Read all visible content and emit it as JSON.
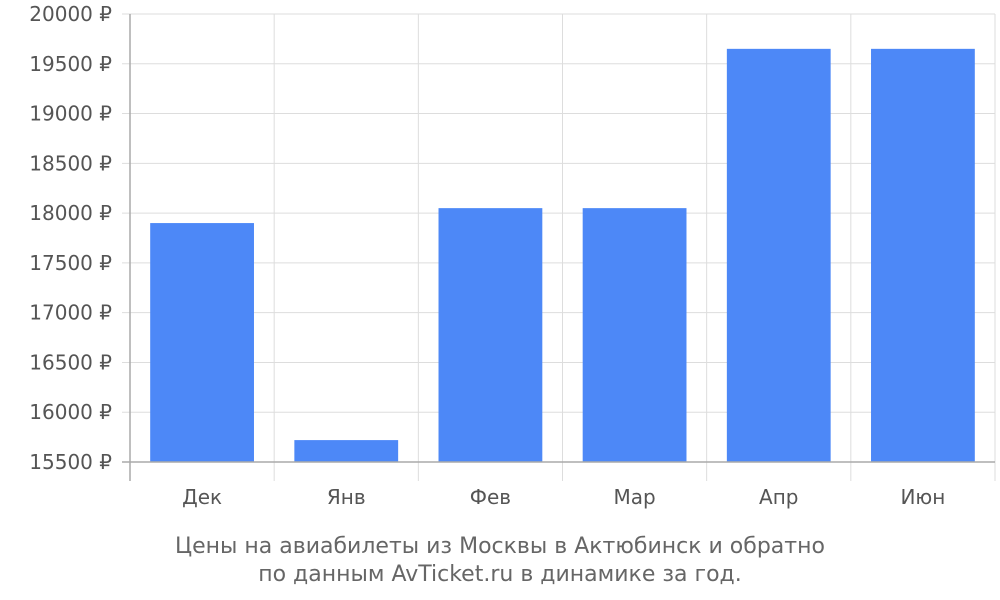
{
  "chart_data": {
    "type": "bar",
    "categories": [
      "Дек",
      "Янв",
      "Фев",
      "Мар",
      "Апр",
      "Июн"
    ],
    "series": [
      {
        "values": [
          17900,
          15720,
          18050,
          18050,
          19650,
          19650
        ],
        "color": "#4d88f7"
      }
    ],
    "ylim": [
      15500,
      20000
    ],
    "y_ticks": [
      15500,
      16000,
      16500,
      17000,
      17500,
      18000,
      18500,
      19000,
      19500,
      20000
    ],
    "y_tick_suffix": " ₽",
    "grid": true,
    "bar_color": "#4d88f7"
  },
  "caption": {
    "line1": "Цены на авиабилеты из Москвы в Актюбинск и обратно",
    "line2": "по данным AvTicket.ru в динамике за год."
  }
}
